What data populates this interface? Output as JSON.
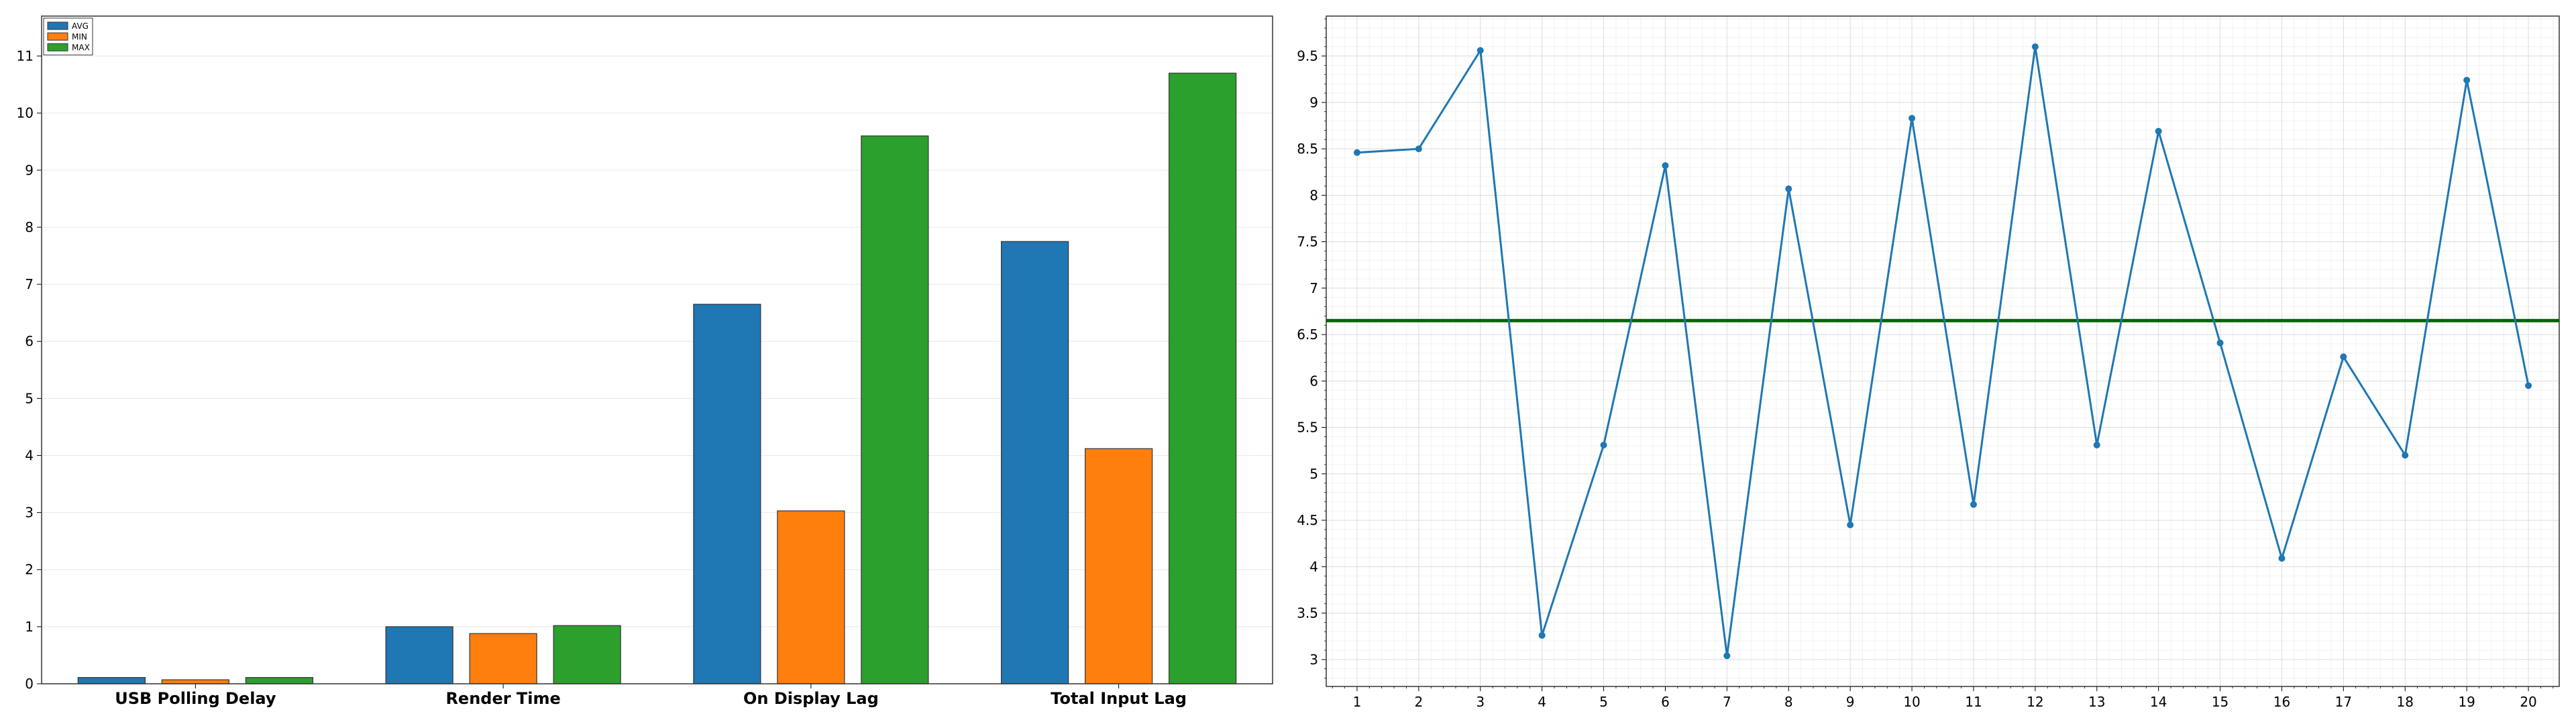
{
  "chart_data": [
    {
      "type": "bar",
      "categories": [
        "USB Polling Delay",
        "Render Time",
        "On Display Lag",
        "Total Input Lag"
      ],
      "series": [
        {
          "name": "AVG",
          "color": "#1f77b4",
          "values": [
            0.11,
            1.0,
            6.65,
            7.75
          ]
        },
        {
          "name": "MIN",
          "color": "#ff7f0e",
          "values": [
            0.07,
            0.88,
            3.03,
            4.12
          ]
        },
        {
          "name": "MAX",
          "color": "#2ca02c",
          "values": [
            0.11,
            1.02,
            9.6,
            10.7
          ]
        }
      ],
      "yticks": [
        0,
        1,
        2,
        3,
        4,
        5,
        6,
        7,
        8,
        9,
        10,
        11
      ],
      "ylim": [
        0,
        11.7
      ],
      "grid": true,
      "legend_position": "top-left"
    },
    {
      "type": "line",
      "x": [
        1,
        2,
        3,
        4,
        5,
        6,
        7,
        8,
        9,
        10,
        11,
        12,
        13,
        14,
        15,
        16,
        17,
        18,
        19,
        20
      ],
      "series": [
        {
          "color": "#1f77b4",
          "values": [
            8.46,
            8.5,
            9.56,
            3.26,
            5.31,
            8.32,
            3.04,
            8.07,
            4.45,
            8.83,
            4.67,
            9.6,
            5.31,
            8.69,
            6.41,
            4.09,
            6.26,
            5.2,
            9.24,
            5.95
          ]
        }
      ],
      "reference_line": {
        "value": 6.65,
        "color": "#006400"
      },
      "yticks": [
        3,
        3.5,
        4,
        4.5,
        5,
        5.5,
        6,
        6.5,
        7,
        7.5,
        8,
        8.5,
        9,
        9.5
      ],
      "ylim": [
        2.71,
        9.93
      ],
      "xlim": [
        0.5,
        20.5
      ],
      "grid": true
    }
  ]
}
